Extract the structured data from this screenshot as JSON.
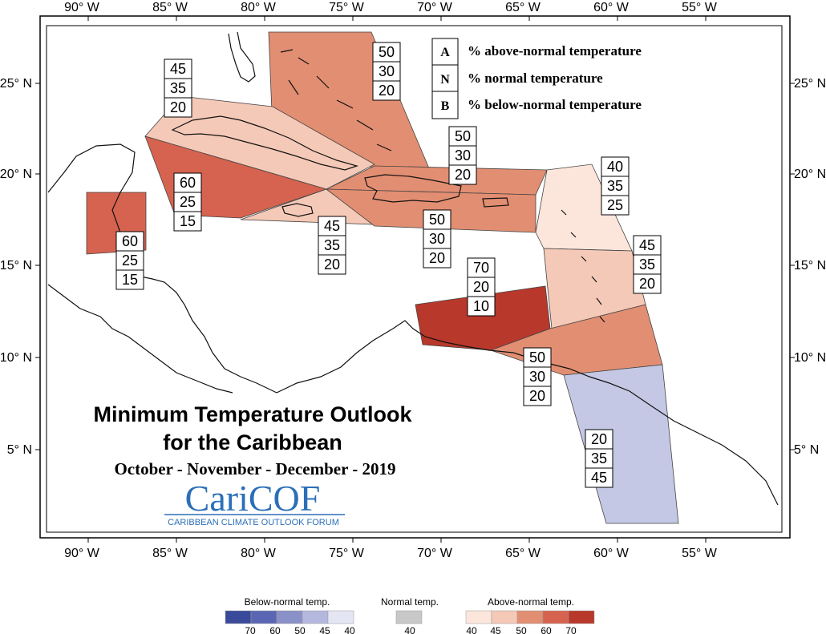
{
  "map": {
    "lon_ticks": [
      "90° W",
      "85° W",
      "80° W",
      "75° W",
      "70° W",
      "65° W",
      "60° W",
      "55° W"
    ],
    "lat_ticks": [
      "25° N",
      "20° N",
      "15° N",
      "10° N",
      "5° N"
    ]
  },
  "legend_table": {
    "rows": [
      {
        "key": "A",
        "text": "% above-normal temperature"
      },
      {
        "key": "N",
        "text": "% normal temperature"
      },
      {
        "key": "B",
        "text": "% below-normal temperature"
      }
    ]
  },
  "regions": [
    {
      "id": "bahamas",
      "values": [
        "50",
        "30",
        "20"
      ],
      "color": "#e28e72"
    },
    {
      "id": "cuba",
      "values": [
        "45",
        "35",
        "20"
      ],
      "color": "#f5c9b7"
    },
    {
      "id": "west-caribbean",
      "values": [
        "60",
        "25",
        "15"
      ],
      "color": "#d6634f"
    },
    {
      "id": "belize",
      "values": [
        "60",
        "25",
        "15"
      ],
      "color": "#d6634f"
    },
    {
      "id": "jamaica",
      "values": [
        "45",
        "35",
        "20"
      ],
      "color": "#f5c9b7"
    },
    {
      "id": "hispaniola",
      "values": [
        "50",
        "30",
        "20"
      ],
      "color": "#e28e72"
    },
    {
      "id": "caribbean-central",
      "values": [
        "50",
        "30",
        "20"
      ],
      "color": "#e28e72"
    },
    {
      "id": "leeward",
      "values": [
        "40",
        "35",
        "25"
      ],
      "color": "#fce6dc"
    },
    {
      "id": "windward",
      "values": [
        "45",
        "35",
        "20"
      ],
      "color": "#f5c9b7"
    },
    {
      "id": "abc-islands",
      "values": [
        "70",
        "20",
        "10"
      ],
      "color": "#b8382b"
    },
    {
      "id": "trinidad",
      "values": [
        "50",
        "30",
        "20"
      ],
      "color": "#e28e72"
    },
    {
      "id": "guianas",
      "values": [
        "20",
        "35",
        "45"
      ],
      "color": "#c5c8e4"
    }
  ],
  "title": {
    "line1": "Minimum Temperature Outlook",
    "line2": "for the Caribbean",
    "period": "October - November - December - 2019"
  },
  "logo": {
    "name": "CariCOF",
    "subtitle": "CARIBBEAN CLIMATE OUTLOOK FORUM"
  },
  "colorbar": {
    "below": {
      "title": "Below-normal temp.",
      "colors": [
        "#3a4a9a",
        "#5a66b4",
        "#8a90c8",
        "#b4b8de",
        "#e4e6f4"
      ],
      "ticks": [
        "70",
        "60",
        "50",
        "45",
        "40"
      ]
    },
    "normal": {
      "title": "Normal temp.",
      "colors": [
        "#c8c8c8"
      ],
      "ticks": [
        "40"
      ]
    },
    "above": {
      "title": "Above-normal temp.",
      "colors": [
        "#fce6dc",
        "#f5c9b7",
        "#e28e72",
        "#d6634f",
        "#b8382b"
      ],
      "ticks": [
        "40",
        "45",
        "50",
        "60",
        "70"
      ]
    }
  }
}
